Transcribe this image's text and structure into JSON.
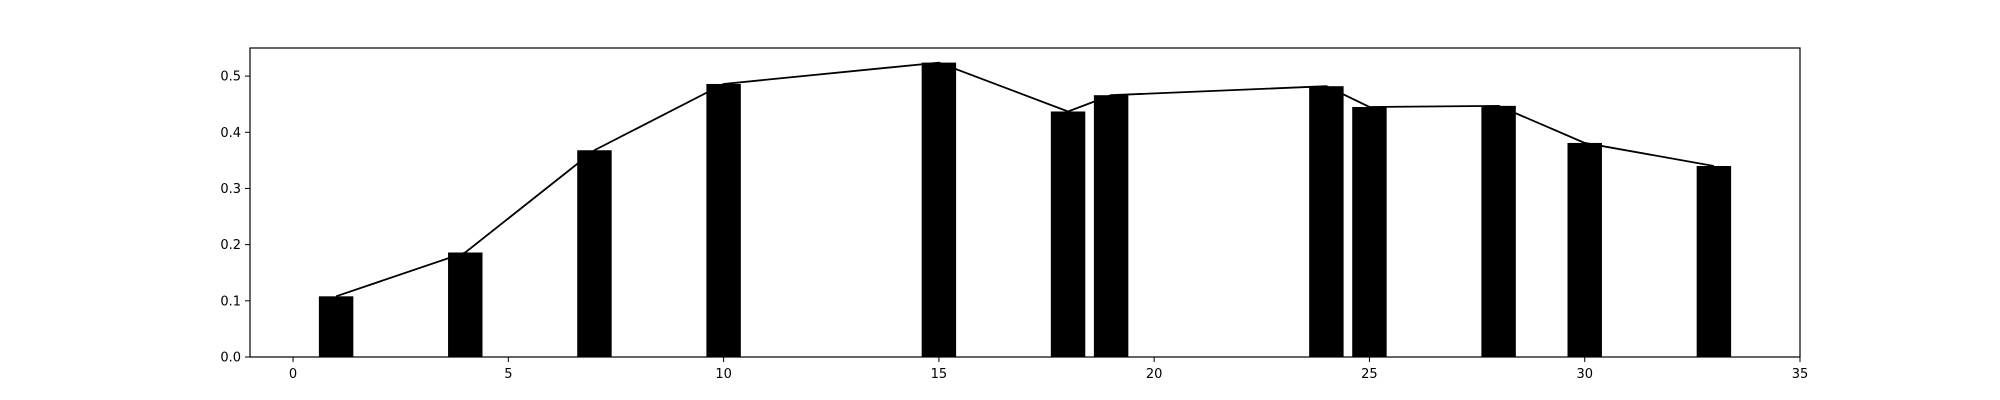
{
  "chart_data": {
    "type": "bar",
    "title": "",
    "xlabel": "",
    "ylabel": "",
    "xlim": [
      -1,
      35
    ],
    "ylim": [
      0,
      0.55
    ],
    "x_ticks": [
      0,
      5,
      10,
      15,
      20,
      25,
      30,
      35
    ],
    "y_ticks": [
      0.0,
      0.1,
      0.2,
      0.3,
      0.4,
      0.5
    ],
    "x_tick_labels": [
      "0",
      "5",
      "10",
      "15",
      "20",
      "25",
      "30",
      "35"
    ],
    "y_tick_labels": [
      "0.0",
      "0.1",
      "0.2",
      "0.3",
      "0.4",
      "0.5"
    ],
    "grid": false,
    "bar_width": 0.8,
    "colors": {
      "bar": "#000000",
      "line": "#000000",
      "axes": "#000000"
    },
    "x": [
      1,
      4,
      7,
      10,
      15,
      18,
      19,
      24,
      25,
      28,
      30,
      33
    ],
    "values": [
      0.108,
      0.186,
      0.368,
      0.486,
      0.524,
      0.437,
      0.466,
      0.482,
      0.445,
      0.447,
      0.381,
      0.34
    ],
    "series": [
      {
        "type": "bar"
      },
      {
        "type": "line"
      }
    ]
  }
}
